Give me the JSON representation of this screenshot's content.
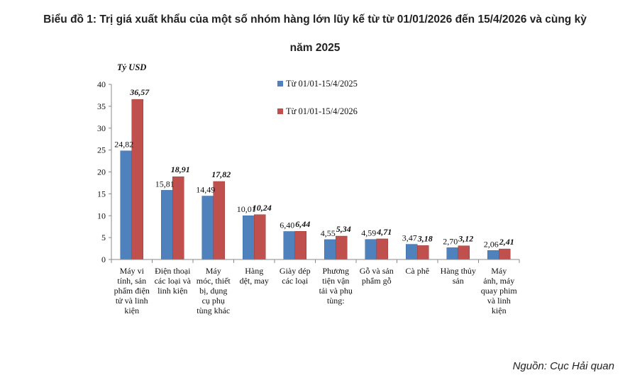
{
  "title_line1": "Biểu đồ 1: Trị giá xuất khẩu của một số nhóm hàng lớn lũy kế từ từ 01/01/2026 đến 15/4/2026 và cùng kỳ",
  "title_line2": "năm 2025",
  "source": "Nguồn: Cục Hải quan",
  "chart_data": {
    "type": "bar",
    "ylabel": "Tỷ USD",
    "ylim": [
      0,
      40
    ],
    "yticks": [
      0,
      5,
      10,
      15,
      20,
      25,
      30,
      35,
      40
    ],
    "categories": [
      [
        "Máy vi",
        "tính, sản",
        "phẩm điện",
        "tử và linh",
        "kiện"
      ],
      [
        "Điện thoại",
        "các loại và",
        "linh kiện"
      ],
      [
        "Máy",
        "móc, thiết",
        "bị, dụng",
        "cụ phụ",
        "tùng khác"
      ],
      [
        "Hàng",
        "dệt, may"
      ],
      [
        "Giày dép",
        "các loại"
      ],
      [
        "Phương",
        "tiện vận",
        "tải và phụ",
        "tùng:"
      ],
      [
        "Gỗ và sản",
        "phẩm gỗ"
      ],
      [
        "Cà phê"
      ],
      [
        "Hàng thủy",
        "sản"
      ],
      [
        "Máy",
        "ảnh, máy",
        "quay phim",
        "và linh",
        "kiện"
      ]
    ],
    "series": [
      {
        "name": "Từ 01/01-15/4/2025",
        "color": "#4f81bd",
        "values": [
          24.82,
          15.81,
          14.49,
          10.01,
          6.4,
          4.55,
          4.59,
          3.47,
          2.7,
          2.06
        ],
        "labels": [
          "24,82",
          "15,81",
          "14,49",
          "10,01",
          "6,40",
          "4,55",
          "4,59",
          "3,47",
          "2,70",
          "2,06"
        ]
      },
      {
        "name": "Từ 01/01-15/4/2026",
        "color": "#c0504d",
        "values": [
          36.57,
          18.91,
          17.82,
          10.24,
          6.44,
          5.34,
          4.71,
          3.18,
          3.12,
          2.41
        ],
        "labels": [
          "36,57",
          "18,91",
          "17,82",
          "10,24",
          "6,44",
          "5,34",
          "4,71",
          "3,18",
          "3,12",
          "2,41"
        ]
      }
    ],
    "legend_position": "top-center",
    "grid": false
  }
}
